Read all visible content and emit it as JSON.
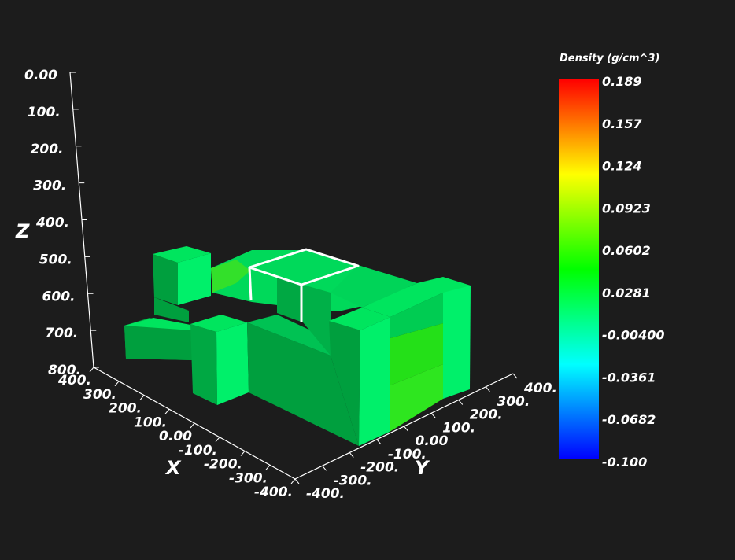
{
  "chart_data": {
    "type": "3d-voxel",
    "colorbar": {
      "title": "Density (g/cm^3)",
      "range": [
        -0.1,
        0.189
      ],
      "tick_labels": [
        "0.189",
        "0.157",
        "0.124",
        "0.0923",
        "0.0602",
        "0.0281",
        "-0.00400",
        "-0.0361",
        "-0.0682",
        "-0.100"
      ],
      "colormap": [
        "#0000ff",
        "#00ffff",
        "#00ff00",
        "#ffff00",
        "#ff0000"
      ]
    },
    "axes": {
      "x": {
        "label": "X",
        "range": [
          -400,
          400
        ],
        "tick_labels": [
          "400.",
          "300.",
          "200.",
          "100.",
          "0.00",
          "-100.",
          "-200.",
          "-300.",
          "-400."
        ]
      },
      "y": {
        "label": "Y",
        "range": [
          -400,
          400
        ],
        "tick_labels": [
          "-400.",
          "-300.",
          "-200.",
          "-100.",
          "0.00",
          "100.",
          "200.",
          "300.",
          "400."
        ]
      },
      "z": {
        "label": "Z",
        "range": [
          0,
          800
        ],
        "tick_labels": [
          "0.00",
          "100.",
          "200.",
          "300.",
          "400.",
          "500.",
          "600.",
          "700.",
          "800."
        ]
      }
    },
    "voxel_colors": {
      "light": "#00f06a",
      "mid": "#00cc52",
      "dark": "#009f3e",
      "lime": "#2ee61f"
    }
  }
}
